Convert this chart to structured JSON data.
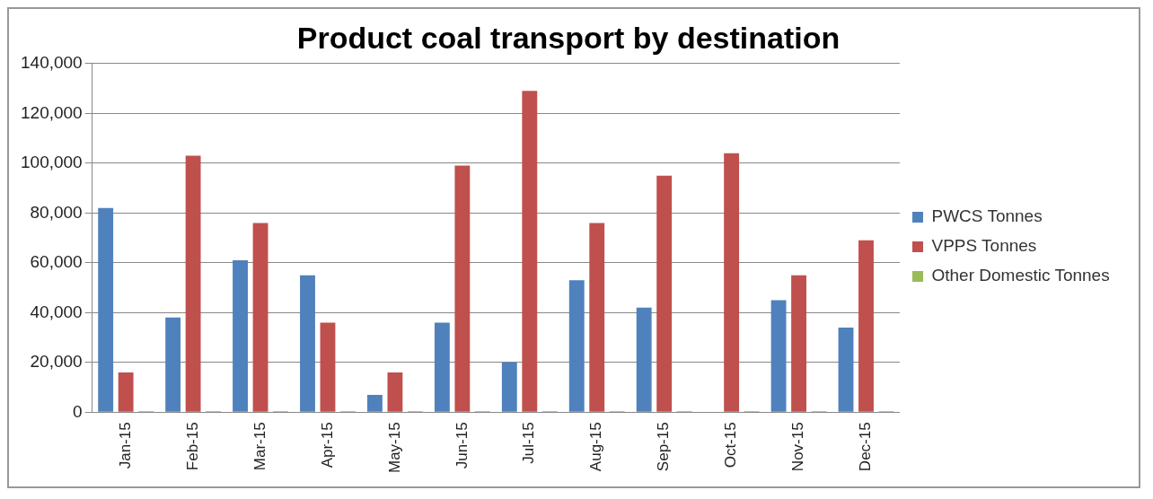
{
  "chart_data": {
    "type": "bar",
    "title": "Product coal transport by destination",
    "categories": [
      "Jan-15",
      "Feb-15",
      "Mar-15",
      "Apr-15",
      "May-15",
      "Jun-15",
      "Jul-15",
      "Aug-15",
      "Sep-15",
      "Oct-15",
      "Nov-15",
      "Dec-15"
    ],
    "series": [
      {
        "name": "PWCS Tonnes",
        "color": "#4f81bd",
        "values": [
          82000,
          38000,
          61000,
          55000,
          7000,
          36000,
          20000,
          53000,
          42000,
          0,
          45000,
          34000
        ]
      },
      {
        "name": "VPPS Tonnes",
        "color": "#c0504d",
        "values": [
          16000,
          103000,
          76000,
          36000,
          16000,
          99000,
          129000,
          76000,
          95000,
          104000,
          55000,
          69000
        ]
      },
      {
        "name": "Other Domestic Tonnes",
        "color": "#9bbb59",
        "values": [
          500,
          500,
          500,
          500,
          500,
          500,
          500,
          500,
          500,
          500,
          500,
          500
        ]
      }
    ],
    "ylim": [
      0,
      140000
    ],
    "yticks": [
      {
        "value": 0,
        "label": "0"
      },
      {
        "value": 20000,
        "label": "20,000"
      },
      {
        "value": 40000,
        "label": "40,000"
      },
      {
        "value": 60000,
        "label": "60,000"
      },
      {
        "value": 80000,
        "label": "80,000"
      },
      {
        "value": 100000,
        "label": "100,000"
      },
      {
        "value": 120000,
        "label": "120,000"
      },
      {
        "value": 140000,
        "label": "140,000"
      }
    ],
    "grid": "y",
    "legend": "right"
  }
}
